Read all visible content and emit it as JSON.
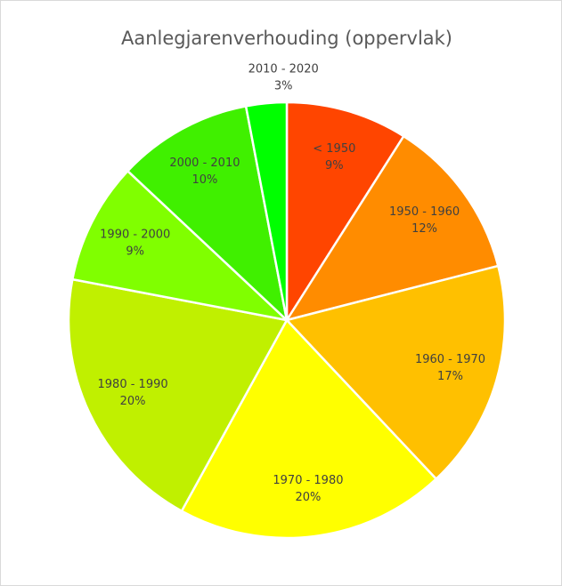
{
  "chart_data": {
    "type": "pie",
    "title": "Aanlegjarenverhouding (oppervlak)",
    "categories": [
      "< 1950",
      "1950 - 1960",
      "1960 - 1970",
      "1970 - 1980",
      "1980 - 1990",
      "1990 - 2000",
      "2000 - 2010",
      "2010 - 2020"
    ],
    "values": [
      9,
      12,
      17,
      20,
      20,
      9,
      10,
      3
    ],
    "value_labels": [
      "9%",
      "12%",
      "17%",
      "20%",
      "20%",
      "9%",
      "10%",
      "3%"
    ],
    "colors": [
      "#ff4500",
      "#ff8c00",
      "#ffc000",
      "#ffff00",
      "#c0f000",
      "#80ff00",
      "#40f000",
      "#00ff00"
    ]
  }
}
